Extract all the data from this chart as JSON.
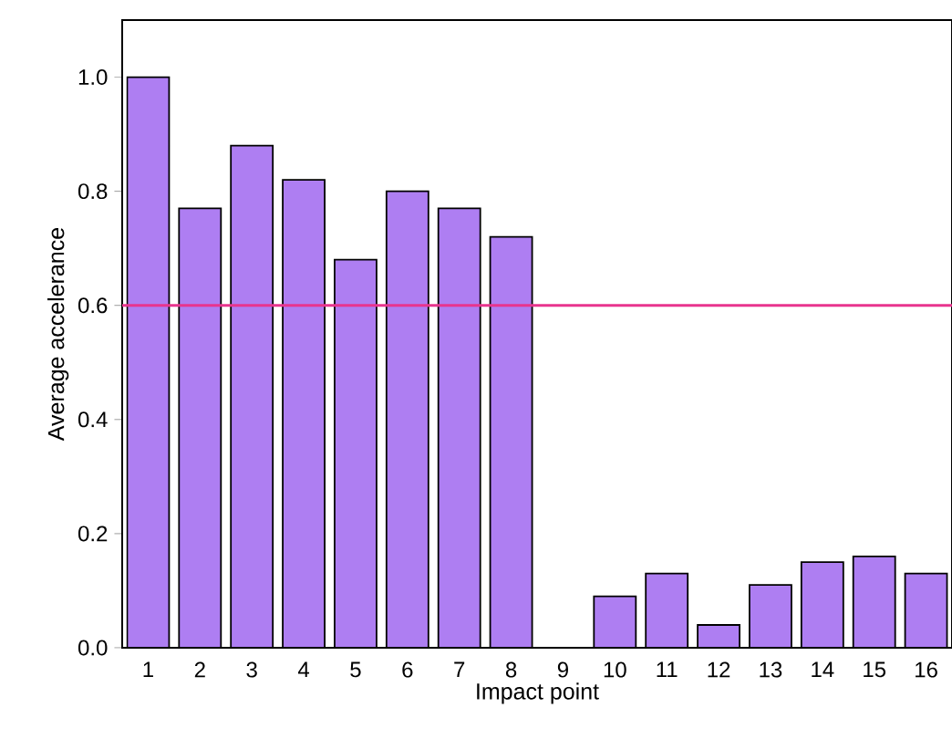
{
  "chart_data": {
    "type": "bar",
    "xlabel": "Impact point",
    "ylabel": "Average accelerance",
    "categories": [
      "1",
      "2",
      "3",
      "4",
      "5",
      "6",
      "7",
      "8",
      "9",
      "10",
      "11",
      "12",
      "13",
      "14",
      "15",
      "16"
    ],
    "values": [
      1.0,
      0.77,
      0.88,
      0.82,
      0.68,
      0.8,
      0.77,
      0.72,
      0,
      0.09,
      0.13,
      0.04,
      0.11,
      0.15,
      0.16,
      0.13
    ],
    "color": "#ae7ef2",
    "ylim": [
      0,
      1.1
    ],
    "yticks": [
      {
        "value": 0,
        "label": "0.0"
      },
      0.2,
      0.4,
      0.6,
      0.8,
      {
        "value": 1,
        "label": "1.0"
      }
    ],
    "ref_lines": [
      {
        "axis": "y",
        "value": 0.6,
        "color": "#e8348e"
      }
    ],
    "grid": false
  }
}
